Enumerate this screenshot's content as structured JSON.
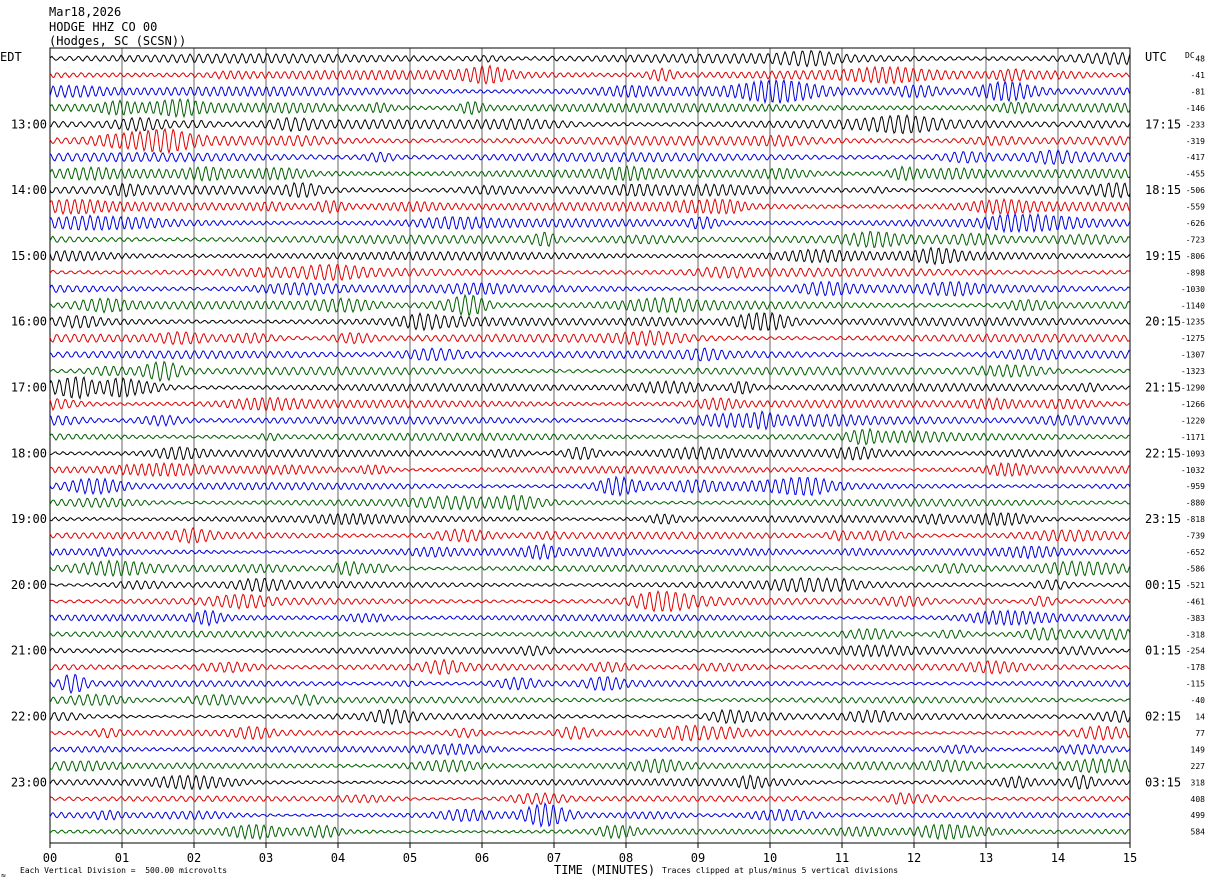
{
  "header": {
    "date": "Mar18,2026",
    "station": "HODGE HHZ CO 00",
    "location": "(Hodges, SC (SCSN))"
  },
  "left_timezone": "EDT",
  "right_timezone": "UTC",
  "dc_label": "DC",
  "footer": {
    "scale_note": "Each Vertical Division =  500.00 microvolts",
    "clip_note": "Traces clipped at plus/minus 5 vertical divisions",
    "logo_text": "≈"
  },
  "colors": {
    "trace_cycle": [
      "#000000",
      "#e00000",
      "#0000e0",
      "#006000"
    ],
    "grid": "#000000",
    "background": "#ffffff"
  },
  "chart_data": {
    "type": "line",
    "subtype": "helicorder",
    "xlabel": "TIME (MINUTES)",
    "xticks": [
      "00",
      "01",
      "02",
      "03",
      "04",
      "05",
      "06",
      "07",
      "08",
      "09",
      "10",
      "11",
      "12",
      "13",
      "14",
      "15"
    ],
    "xlim": [
      0,
      15
    ],
    "minutes_per_line": 15,
    "line_count": 48,
    "left_hour_labels": [
      "13:00",
      "14:00",
      "15:00",
      "16:00",
      "17:00",
      "18:00",
      "19:00",
      "20:00",
      "21:00",
      "22:00",
      "23:00"
    ],
    "right_hour_labels": [
      "17:15",
      "18:15",
      "19:15",
      "20:15",
      "21:15",
      "22:15",
      "23:15",
      "00:15",
      "01:15",
      "02:15",
      "03:15"
    ],
    "dc_offsets": [
      48,
      -41,
      -81,
      -146,
      -233,
      -319,
      -417,
      -455,
      -506,
      -559,
      -626,
      -723,
      -806,
      -898,
      -1030,
      -1140,
      -1235,
      -1275,
      -1307,
      -1323,
      -1290,
      -1266,
      -1220,
      -1171,
      -1093,
      -1032,
      -959,
      -880,
      -818,
      -739,
      -652,
      -586,
      -521,
      -461,
      -383,
      -318,
      -254,
      -178,
      -115,
      -40,
      14,
      77,
      149,
      227,
      318,
      408,
      499,
      584
    ],
    "microvolts_per_division": 500.0,
    "clip_divisions": 5
  }
}
